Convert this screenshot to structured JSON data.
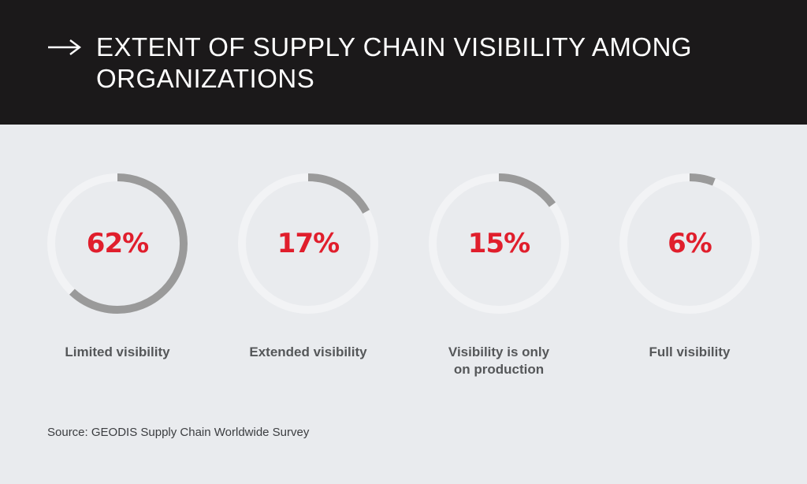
{
  "header": {
    "title": "EXTENT OF SUPPLY CHAIN VISIBILITY AMONG ORGANIZATIONS",
    "icon": "arrow-right-icon"
  },
  "chart_data": {
    "type": "pie",
    "title": "EXTENT OF SUPPLY CHAIN VISIBILITY AMONG ORGANIZATIONS",
    "items": [
      {
        "label": "Limited visibility",
        "value": 62,
        "display": "62%"
      },
      {
        "label": "Extended visibility",
        "value": 17,
        "display": "17%"
      },
      {
        "label": "Visibility is only on production",
        "value": 15,
        "display": "15%"
      },
      {
        "label": "Full visibility",
        "value": 6,
        "display": "6%"
      }
    ]
  },
  "colors": {
    "header_bg": "#1b191a",
    "page_bg": "#e9ebee",
    "ring_track": "#f2f3f5",
    "ring_fill": "#9a9a9a",
    "percent_text": "#e01e2c"
  },
  "footer": {
    "source": "Source: GEODIS Supply Chain Worldwide Survey"
  }
}
